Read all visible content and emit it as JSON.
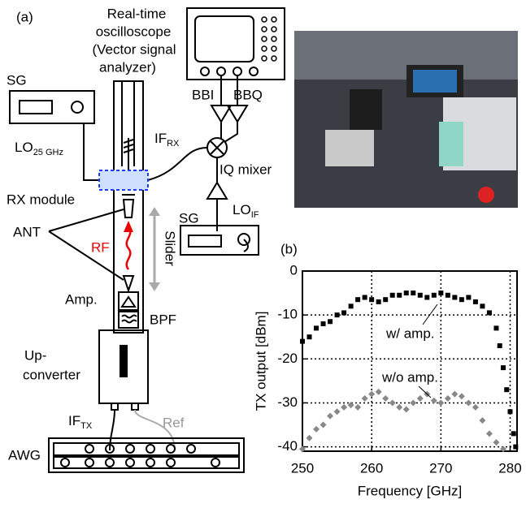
{
  "diagram": {
    "panel_label": "(a)",
    "scope_label": [
      "Real-time",
      "oscilloscope",
      "(Vector signal",
      "analyzer)"
    ],
    "sg_top": "SG",
    "lo_rf": {
      "main": "LO",
      "sub": "25 GHz"
    },
    "if_rx": {
      "main": "IF",
      "sub": "RX"
    },
    "bbi": "BBI",
    "bbq": "BBQ",
    "iq_mixer": "IQ mixer",
    "rx_module": "RX module",
    "lo_if": {
      "main": "LO",
      "sub": "IF"
    },
    "sg_mid": "SG",
    "ant": "ANT",
    "rf": "RF",
    "slider": "Slider",
    "amp": "Amp.",
    "bpf": "BPF",
    "upconverter": [
      "Up-",
      "converter"
    ],
    "if_tx": {
      "main": "IF",
      "sub": "TX"
    },
    "ref": "Ref",
    "awg": "AWG"
  },
  "chart_data": {
    "type": "scatter",
    "panel_label": "(b)",
    "x_label": "Frequency [GHz]",
    "y_label": "TX output [dBm]",
    "xlim": [
      250,
      281
    ],
    "ylim": [
      -41,
      0
    ],
    "xticks": [
      250,
      260,
      270,
      280
    ],
    "yticks": [
      0,
      -10,
      -20,
      -30,
      -40
    ],
    "grid": true,
    "series": [
      {
        "name": "w/ amp.",
        "color": "#000000",
        "marker": "square",
        "x": [
          250,
          251,
          252,
          253,
          254,
          255,
          256,
          257,
          258,
          259,
          260,
          261,
          262,
          263,
          264,
          265,
          266,
          267,
          268,
          269,
          270,
          271,
          272,
          273,
          274,
          275,
          276,
          277,
          278,
          278.5,
          279,
          279.5,
          280,
          280.5,
          280.8
        ],
        "values": [
          -16,
          -15,
          -13,
          -12,
          -11.5,
          -10,
          -9.5,
          -8,
          -6.5,
          -6,
          -6.5,
          -7,
          -6.5,
          -5.5,
          -5.5,
          -5,
          -5,
          -5.5,
          -6,
          -5.5,
          -5,
          -5.5,
          -6,
          -6.5,
          -6,
          -7,
          -8,
          -9.5,
          -13,
          -17,
          -22,
          -27,
          -32,
          -37,
          -40
        ]
      },
      {
        "name": "w/o amp.",
        "color": "#888888",
        "marker": "diamond",
        "x": [
          250,
          251,
          252,
          253,
          254,
          255,
          256,
          257,
          258,
          259,
          260,
          261,
          262,
          263,
          264,
          265,
          266,
          267,
          268,
          269,
          270,
          271,
          272,
          273,
          274,
          275,
          276,
          277,
          278,
          279
        ],
        "values": [
          -40.5,
          -38,
          -36,
          -35,
          -33,
          -32,
          -31,
          -30.5,
          -31,
          -29,
          -28,
          -27.5,
          -29,
          -30,
          -31,
          -31.5,
          -30,
          -29,
          -28,
          -29.5,
          -30,
          -29,
          -28,
          -28.5,
          -30,
          -31,
          -34,
          -37,
          -39,
          -40.5
        ]
      }
    ]
  }
}
